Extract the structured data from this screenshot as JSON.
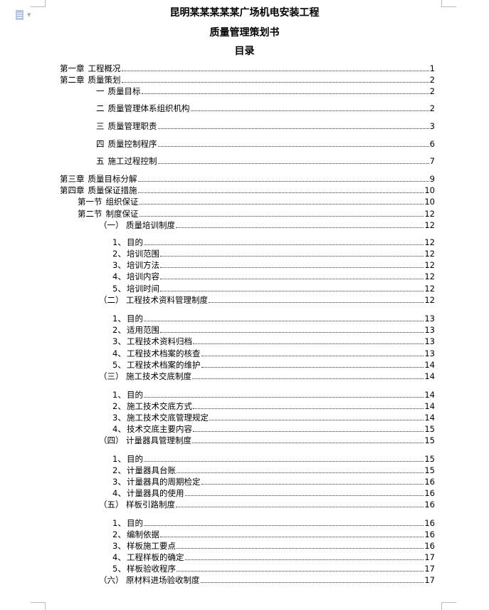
{
  "document": {
    "title": "昆明某某某某某广场机电安装工程",
    "subtitle": "质量管理策划书",
    "toc_heading": "目录",
    "icon": "document-icon",
    "toc": [
      {
        "level": "chapter",
        "num": "第一章",
        "text": "工程概况",
        "page": "1"
      },
      {
        "level": "chapter",
        "num": "第二章",
        "text": "质量策划",
        "page": "2"
      },
      {
        "level": "part",
        "num": "一",
        "text": "质量目标",
        "page": "2"
      },
      {
        "level": "part",
        "num": "二",
        "text": "质量管理体系组织机构",
        "page": "2"
      },
      {
        "level": "part",
        "num": "三",
        "text": "质量管理职责",
        "page": "3"
      },
      {
        "level": "part",
        "num": "四",
        "text": "质量控制程序",
        "page": "6"
      },
      {
        "level": "part",
        "num": "五",
        "text": "施工过程控制",
        "page": "7"
      },
      {
        "level": "chapter",
        "num": "第三章",
        "text": "质量目标分解",
        "page": "9"
      },
      {
        "level": "chapter",
        "num": "第四章",
        "text": "质量保证措施",
        "page": "10"
      },
      {
        "level": "section",
        "num": "第一节",
        "text": "组织保证",
        "page": "10"
      },
      {
        "level": "section",
        "num": "第二节",
        "text": "制度保证",
        "page": "12"
      },
      {
        "level": "sub",
        "num": "（一）",
        "text": "质量培训制度",
        "page": "12"
      },
      {
        "level": "item",
        "num": "1、",
        "text": "目的",
        "page": "12"
      },
      {
        "level": "item",
        "num": "2、",
        "text": "培训范围",
        "page": "12"
      },
      {
        "level": "item",
        "num": "3、",
        "text": "培训方法",
        "page": "12"
      },
      {
        "level": "item",
        "num": "4、",
        "text": "培训内容",
        "page": "12"
      },
      {
        "level": "item",
        "num": "5、",
        "text": "培训时间",
        "page": "12"
      },
      {
        "level": "sub",
        "num": "（二）",
        "text": "工程技术资料管理制度",
        "page": "12"
      },
      {
        "level": "item",
        "num": "1、",
        "text": "目的",
        "page": "13"
      },
      {
        "level": "item",
        "num": "2、",
        "text": "适用范围",
        "page": "13"
      },
      {
        "level": "item",
        "num": "3、",
        "text": "工程技术资料归档",
        "page": "13"
      },
      {
        "level": "item",
        "num": "4、",
        "text": "工程技术档案的核查",
        "page": "13"
      },
      {
        "level": "item",
        "num": "5、",
        "text": "工程技术档案的维护",
        "page": "14"
      },
      {
        "level": "sub",
        "num": "（三）",
        "text": "施工技术交底制度",
        "page": "14"
      },
      {
        "level": "item",
        "num": "1、",
        "text": "目的",
        "page": "14"
      },
      {
        "level": "item",
        "num": "2、",
        "text": "施工技术交底方式",
        "page": "14"
      },
      {
        "level": "item",
        "num": "3、",
        "text": "施工技术交底管理规定",
        "page": "14"
      },
      {
        "level": "item",
        "num": "4、",
        "text": "技术交底主要内容",
        "page": "15"
      },
      {
        "level": "sub",
        "num": "（四）",
        "text": "计量器具管理制度",
        "page": "15"
      },
      {
        "level": "item",
        "num": "1、",
        "text": "目的",
        "page": "15"
      },
      {
        "level": "item",
        "num": "2、",
        "text": "计量器具台账",
        "page": "15"
      },
      {
        "level": "item",
        "num": "3、",
        "text": "计量器具的周期检定",
        "page": "16"
      },
      {
        "level": "item",
        "num": "4、",
        "text": "计量器具的使用",
        "page": "16"
      },
      {
        "level": "sub",
        "num": "（五）",
        "text": "样板引路制度",
        "page": "16"
      },
      {
        "level": "item",
        "num": "1、",
        "text": "目的",
        "page": "16"
      },
      {
        "level": "item",
        "num": "2、",
        "text": "编制依据",
        "page": "16"
      },
      {
        "level": "item",
        "num": "3、",
        "text": "样板施工要点",
        "page": "16"
      },
      {
        "level": "item",
        "num": "4、",
        "text": "工程样板的确定",
        "page": "17"
      },
      {
        "level": "item",
        "num": "5、",
        "text": "样板验收程序",
        "page": "17"
      },
      {
        "level": "sub",
        "num": "（六）",
        "text": "原材料进场验收制度",
        "page": "17"
      }
    ]
  }
}
